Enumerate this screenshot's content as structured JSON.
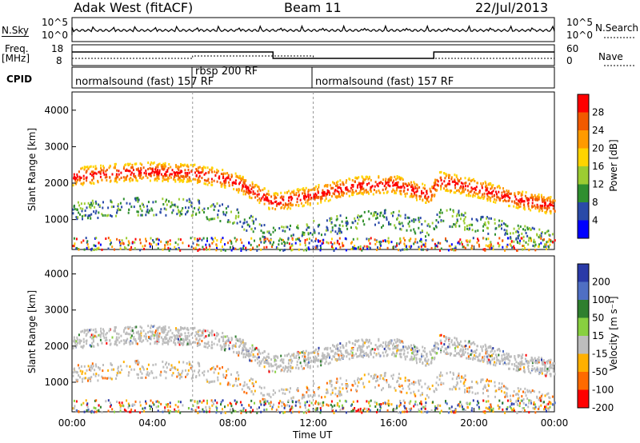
{
  "header": {
    "station": "Adak West (fitACF)",
    "beam": "Beam 11",
    "date": "22/Jul/2013"
  },
  "panels": {
    "nsky_label": "N.Sky",
    "nsearch_label": "N.Search",
    "freq_label_top": "Freq.",
    "freq_label_unit": "[MHz]",
    "nave_label": "Nave",
    "cpid_label": "CPID",
    "left_ticks_top": [
      "10^5",
      "10^0"
    ],
    "right_ticks_top": [
      "10^5",
      "10^0"
    ],
    "freq_ticks": [
      "18",
      "8"
    ],
    "nave_ticks": [
      "60",
      "0"
    ]
  },
  "cpid_segments": [
    {
      "label": "normalsound (fast) 157 RF",
      "start": "00:00"
    },
    {
      "label": "rbsp 200 RF",
      "start": "06:00"
    },
    {
      "label": "normalsound (fast) 157 RF",
      "start": "12:00"
    }
  ],
  "axes": {
    "ylabel": "Slant Range [km]",
    "xlabel": "Time UT",
    "x_ticks": [
      "00:00",
      "04:00",
      "08:00",
      "12:00",
      "16:00",
      "20:00",
      "00:00"
    ],
    "y_ticks": [
      "1000",
      "2000",
      "3000",
      "4000"
    ]
  },
  "colorbars": {
    "power": {
      "label": "Power [dB]",
      "ticks": [
        "28",
        "24",
        "20",
        "16",
        "12",
        "8",
        "4"
      ],
      "colors": [
        "#ff0000",
        "#f25a00",
        "#ff9a00",
        "#ffd400",
        "#9ccc32",
        "#2f8f2f",
        "#2a4aa8",
        "#0000ff"
      ]
    },
    "velocity": {
      "label": "Velocity [m s⁻¹]",
      "ticks": [
        "200",
        "100",
        "50",
        "15",
        "-15",
        "-50",
        "-100",
        "-200"
      ],
      "colors": [
        "#2a3aa8",
        "#4f6fc4",
        "#2f7f2f",
        "#88d040",
        "#bdbdbd",
        "#ffb000",
        "#ff6a00",
        "#ff0000"
      ]
    }
  },
  "chart_data": [
    {
      "type": "heatmap",
      "title": "Power [dB]",
      "xlabel": "Time UT",
      "ylabel": "Slant Range [km]",
      "x_range": [
        "00:00",
        "24:00"
      ],
      "ylim": [
        180,
        4500
      ],
      "main_echo_band": [
        {
          "t": 0,
          "range": 2200
        },
        {
          "t": 2,
          "range": 2300
        },
        {
          "t": 4,
          "range": 2350
        },
        {
          "t": 6,
          "range": 2300
        },
        {
          "t": 8,
          "range": 2100
        },
        {
          "t": 10,
          "range": 1500
        },
        {
          "t": 12,
          "range": 1700
        },
        {
          "t": 14,
          "range": 1950
        },
        {
          "t": 16,
          "range": 2000
        },
        {
          "t": 17.8,
          "range": 1700
        },
        {
          "t": 18.2,
          "range": 2100
        },
        {
          "t": 20,
          "range": 1900
        },
        {
          "t": 22,
          "range": 1600
        },
        {
          "t": 24,
          "range": 1400
        }
      ]
    },
    {
      "type": "heatmap",
      "title": "Velocity [m s⁻¹]",
      "xlabel": "Time UT",
      "ylabel": "Slant Range [km]",
      "x_range": [
        "00:00",
        "24:00"
      ],
      "ylim": [
        180,
        4500
      ]
    }
  ]
}
